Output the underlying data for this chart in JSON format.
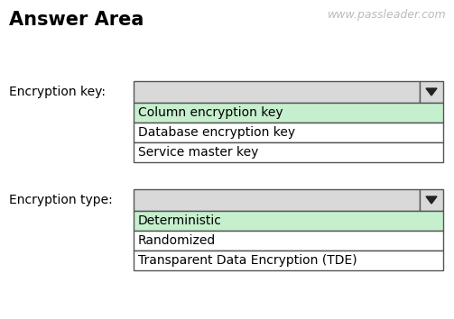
{
  "title": "Answer Area",
  "watermark": "www.passleader.com",
  "bg_color": "#ffffff",
  "title_fontsize": 15,
  "watermark_fontsize": 9,
  "dropdown1_label": "Encryption key:",
  "dropdown2_label": "Encryption type:",
  "dropdown1_items": [
    "Column encryption key",
    "Database encryption key",
    "Service master key"
  ],
  "dropdown2_items": [
    "Deterministic",
    "Randomized",
    "Transparent Data Encryption (TDE)"
  ],
  "selected_color": "#c6efce",
  "unselected_color": "#ffffff",
  "dropdown_header_color": "#d9d9d9",
  "border_color": "#555555",
  "text_color": "#000000",
  "label_fontsize": 10,
  "item_fontsize": 10,
  "fig_width": 5.03,
  "fig_height": 3.54,
  "dpi": 100
}
